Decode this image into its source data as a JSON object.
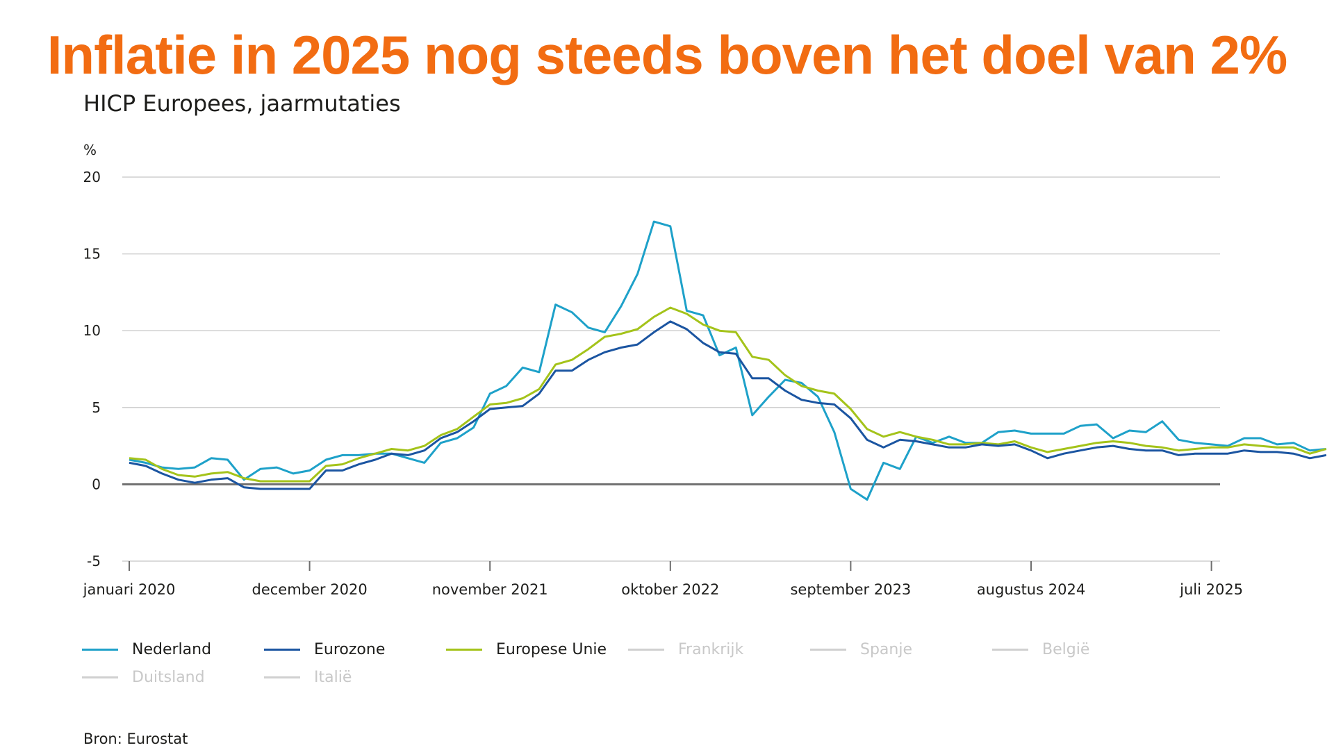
{
  "headline": "Inflatie in 2025 nog steeds boven het doel van 2%",
  "source": "Bron: Eurostat",
  "chart_data": {
    "type": "line",
    "title": "HICP Europees, jaarmutaties",
    "ylabel": "%",
    "ylim": [
      -5,
      20
    ],
    "yticks": [
      -5,
      0,
      5,
      10,
      15,
      20
    ],
    "grid": true,
    "legend_position": "bottom",
    "x_start": "januari 2020",
    "x_tick_labels": [
      "januari 2020",
      "december 2020",
      "november 2021",
      "oktober 2022",
      "september 2023",
      "augustus 2024",
      "juli 2025"
    ],
    "x_tick_index": [
      0,
      11,
      22,
      33,
      44,
      55,
      66
    ],
    "series": [
      {
        "name": "Nederland",
        "color": "#1ea1c9",
        "visible": true,
        "values": [
          1.6,
          1.4,
          1.1,
          1.0,
          1.1,
          1.7,
          1.6,
          0.3,
          1.0,
          1.1,
          0.7,
          0.9,
          1.6,
          1.9,
          1.9,
          2.0,
          2.0,
          1.7,
          1.4,
          2.7,
          3.0,
          3.7,
          5.9,
          6.4,
          7.6,
          7.3,
          11.7,
          11.2,
          10.2,
          9.9,
          11.6,
          13.7,
          17.1,
          16.8,
          11.3,
          11.0,
          8.4,
          8.9,
          4.5,
          5.7,
          6.8,
          6.6,
          5.7,
          3.4,
          -0.3,
          -1.0,
          1.4,
          1.0,
          3.1,
          2.7,
          3.1,
          2.7,
          2.7,
          3.4,
          3.5,
          3.3,
          3.3,
          3.3,
          3.8,
          3.9,
          3.0,
          3.5,
          3.4,
          4.1,
          2.9,
          2.7,
          2.6,
          2.5,
          3.0,
          3.0,
          2.6,
          2.7,
          2.2,
          2.3
        ]
      },
      {
        "name": "Eurozone",
        "color": "#1b55a1",
        "visible": true,
        "values": [
          1.4,
          1.2,
          0.7,
          0.3,
          0.1,
          0.3,
          0.4,
          -0.2,
          -0.3,
          -0.3,
          -0.3,
          -0.3,
          0.9,
          0.9,
          1.3,
          1.6,
          2.0,
          1.9,
          2.2,
          3.0,
          3.4,
          4.1,
          4.9,
          5.0,
          5.1,
          5.9,
          7.4,
          7.4,
          8.1,
          8.6,
          8.9,
          9.1,
          9.9,
          10.6,
          10.1,
          9.2,
          8.6,
          8.5,
          6.9,
          6.9,
          6.1,
          5.5,
          5.3,
          5.2,
          4.3,
          2.9,
          2.4,
          2.9,
          2.8,
          2.6,
          2.4,
          2.4,
          2.6,
          2.5,
          2.6,
          2.2,
          1.7,
          2.0,
          2.2,
          2.4,
          2.5,
          2.3,
          2.2,
          2.2,
          1.9,
          2.0,
          2.0,
          2.0,
          2.2,
          2.1,
          2.1,
          2.0,
          1.7,
          1.9
        ]
      },
      {
        "name": "Europese Unie",
        "color": "#a4c31a",
        "visible": true,
        "values": [
          1.7,
          1.6,
          1.0,
          0.6,
          0.5,
          0.7,
          0.8,
          0.4,
          0.2,
          0.2,
          0.2,
          0.2,
          1.2,
          1.3,
          1.7,
          2.0,
          2.3,
          2.2,
          2.5,
          3.2,
          3.6,
          4.4,
          5.2,
          5.3,
          5.6,
          6.2,
          7.8,
          8.1,
          8.8,
          9.6,
          9.8,
          10.1,
          10.9,
          11.5,
          11.1,
          10.4,
          10.0,
          9.9,
          8.3,
          8.1,
          7.1,
          6.4,
          6.1,
          5.9,
          4.9,
          3.6,
          3.1,
          3.4,
          3.1,
          2.9,
          2.6,
          2.6,
          2.7,
          2.6,
          2.8,
          2.4,
          2.1,
          2.3,
          2.5,
          2.7,
          2.8,
          2.7,
          2.5,
          2.4,
          2.2,
          2.3,
          2.4,
          2.4,
          2.6,
          2.5,
          2.4,
          2.4,
          2.0,
          2.3
        ]
      },
      {
        "name": "Frankrijk",
        "color": "#d0d0d0",
        "visible": false,
        "values": []
      },
      {
        "name": "Spanje",
        "color": "#d0d0d0",
        "visible": false,
        "values": []
      },
      {
        "name": "België",
        "color": "#d0d0d0",
        "visible": false,
        "values": []
      },
      {
        "name": "Duitsland",
        "color": "#d0d0d0",
        "visible": false,
        "values": []
      },
      {
        "name": "Italië",
        "color": "#d0d0d0",
        "visible": false,
        "values": []
      }
    ]
  }
}
